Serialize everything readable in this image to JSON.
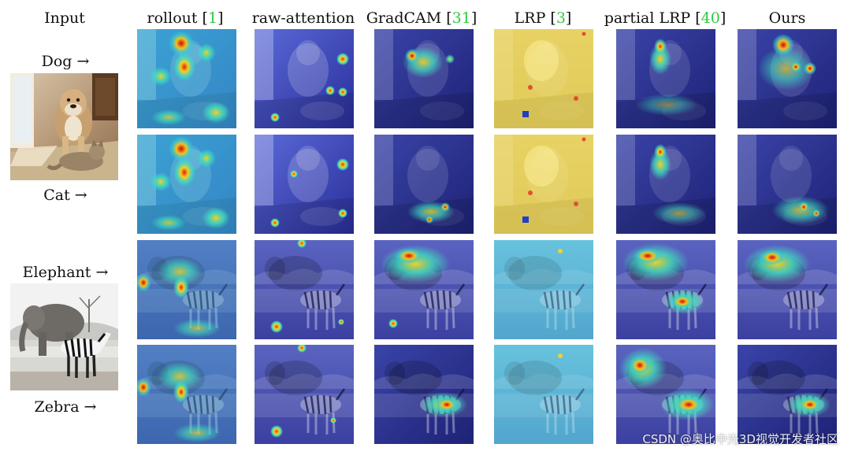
{
  "headers": {
    "input": "Input",
    "methods": [
      {
        "name": "rollout",
        "ref": "1"
      },
      {
        "name": "raw-attention",
        "ref": ""
      },
      {
        "name": "GradCAM",
        "ref": "31"
      },
      {
        "name": "LRP",
        "ref": "3"
      },
      {
        "name": "partial LRP",
        "ref": "40"
      },
      {
        "name": "Ours",
        "ref": ""
      }
    ]
  },
  "row_labels": {
    "dog": "Dog →",
    "cat": "Cat →",
    "elephant": "Elephant →",
    "zebra": "Zebra →"
  },
  "watermark": "CSDN @奥比中光3D视觉开发者社区",
  "colors": {
    "citation": "#2ecc40",
    "heat_hot": "#e02010",
    "heat_warm": "#f5d020",
    "heat_mid": "#40e0c0",
    "heat_cold": "#2030c0"
  }
}
